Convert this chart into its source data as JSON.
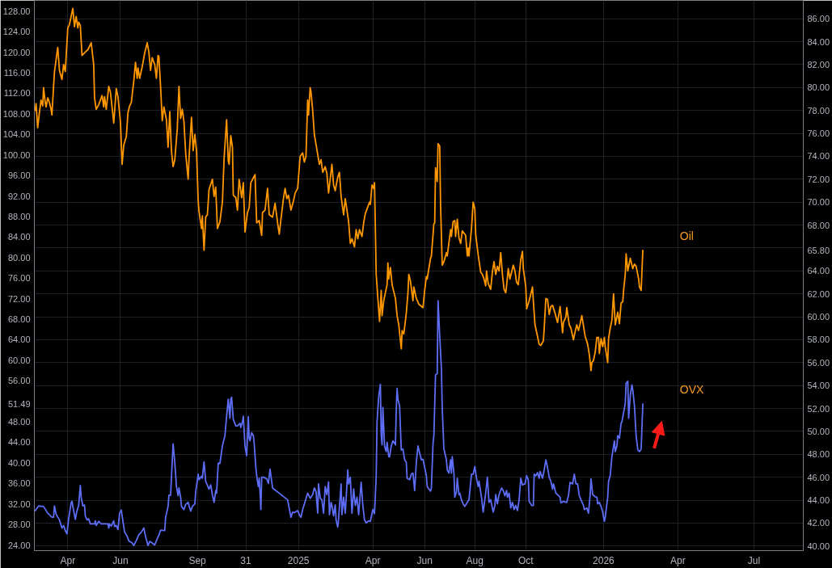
{
  "chart_data": {
    "type": "line",
    "grid": true,
    "xlim": [
      "2024-02-21",
      "2026-08-29"
    ],
    "xticks": [
      {
        "value": "2024-04-01",
        "label": "Apr"
      },
      {
        "value": "2024-06-03",
        "label": "Jun"
      },
      {
        "value": "2024-09-03",
        "label": "Sep"
      },
      {
        "value": "2024-10-31",
        "label": "31"
      },
      {
        "value": "2025-01-02",
        "label": "2025"
      },
      {
        "value": "2025-04-01",
        "label": "Apr"
      },
      {
        "value": "2025-06-02",
        "label": "Jun"
      },
      {
        "value": "2025-08-01",
        "label": "Aug"
      },
      {
        "value": "2025-10-01",
        "label": "Oct"
      },
      {
        "value": "2026-01-02",
        "label": "2026"
      },
      {
        "value": "2026-04-01",
        "label": "Apr"
      },
      {
        "value": "2026-07-01",
        "label": "Jul"
      }
    ],
    "ylim": [
      22.9,
      130.1
    ],
    "yticks": [
      {
        "value": 128,
        "label": "128.00"
      },
      {
        "value": 124,
        "label": "124.00"
      },
      {
        "value": 120,
        "label": "120.00"
      },
      {
        "value": 116,
        "label": "116.00"
      },
      {
        "value": 112,
        "label": "112.00"
      },
      {
        "value": 108,
        "label": "108.00"
      },
      {
        "value": 104,
        "label": "104.00"
      },
      {
        "value": 100,
        "label": "100.00"
      },
      {
        "value": 96,
        "label": "96.00"
      },
      {
        "value": 92,
        "label": "92.00"
      },
      {
        "value": 88,
        "label": "88.00"
      },
      {
        "value": 84,
        "label": "84.00"
      },
      {
        "value": 80,
        "label": "80.00"
      },
      {
        "value": 76,
        "label": "76.00"
      },
      {
        "value": 72,
        "label": "72.00"
      },
      {
        "value": 68,
        "label": "68.00"
      },
      {
        "value": 64,
        "label": "64.00"
      },
      {
        "value": 60,
        "label": "60.00"
      },
      {
        "value": 56,
        "label": "56.00"
      },
      {
        "value": 51.49,
        "label": "51.49"
      },
      {
        "value": 48,
        "label": "48.00"
      },
      {
        "value": 44,
        "label": "44.00"
      },
      {
        "value": 40,
        "label": "40.00"
      },
      {
        "value": 36,
        "label": "36.00"
      },
      {
        "value": 32,
        "label": "32.00"
      },
      {
        "value": 28,
        "label": "28.00"
      },
      {
        "value": 24,
        "label": "24.00"
      }
    ],
    "y2lim": [
      39.6,
      87.6
    ],
    "y2ticks": [
      {
        "value": 86,
        "label": "86.00"
      },
      {
        "value": 84,
        "label": "84.00"
      },
      {
        "value": 82,
        "label": "82.00"
      },
      {
        "value": 80,
        "label": "80.00"
      },
      {
        "value": 78,
        "label": "78.00"
      },
      {
        "value": 76,
        "label": "76.00"
      },
      {
        "value": 74,
        "label": "74.00"
      },
      {
        "value": 72,
        "label": "72.00"
      },
      {
        "value": 70,
        "label": "70.00"
      },
      {
        "value": 68,
        "label": "68.00"
      },
      {
        "value": 66,
        "label": null
      },
      {
        "value": 65.8,
        "label": "65.80"
      },
      {
        "value": 64,
        "label": "64.00"
      },
      {
        "value": 62,
        "label": "62.00"
      },
      {
        "value": 60,
        "label": "60.00"
      },
      {
        "value": 58,
        "label": "58.00"
      },
      {
        "value": 56,
        "label": "56.00"
      },
      {
        "value": 54,
        "label": "54.00"
      },
      {
        "value": 52,
        "label": "52.00"
      },
      {
        "value": 50,
        "label": "50.00"
      },
      {
        "value": 48,
        "label": "48.00"
      },
      {
        "value": 46,
        "label": "46.00"
      },
      {
        "value": 44,
        "label": "44.00"
      },
      {
        "value": 42,
        "label": "42.00"
      },
      {
        "value": 40,
        "label": "40.00"
      }
    ],
    "series": [
      {
        "name": "Oil",
        "color": "#ff9800",
        "axis": "y2",
        "x": [
          "2024-02-22",
          "2024-02-23",
          "2024-02-25",
          "2024-02-27",
          "2024-02-29",
          "2024-03-02",
          "2024-03-03",
          "2024-03-05",
          "2024-03-06",
          "2024-03-08",
          "2024-03-10",
          "2024-03-12",
          "2024-03-13",
          "2024-03-15",
          "2024-03-16",
          "2024-03-19",
          "2024-03-20",
          "2024-03-22",
          "2024-03-25",
          "2024-03-27",
          "2024-03-29",
          "2024-04-01",
          "2024-04-03",
          "2024-04-07",
          "2024-04-09",
          "2024-04-11",
          "2024-04-13",
          "2024-04-14",
          "2024-04-16",
          "2024-04-18",
          "2024-04-22",
          "2024-04-25",
          "2024-04-29",
          "2024-05-02",
          "2024-05-03",
          "2024-05-05",
          "2024-05-08",
          "2024-05-12",
          "2024-05-14",
          "2024-05-15",
          "2024-05-17",
          "2024-05-20",
          "2024-05-22",
          "2024-05-25",
          "2024-05-26",
          "2024-05-29",
          "2024-05-31",
          "2024-06-03",
          "2024-06-05",
          "2024-06-07",
          "2024-06-10",
          "2024-06-12",
          "2024-06-14",
          "2024-06-16",
          "2024-06-19",
          "2024-06-21",
          "2024-06-23",
          "2024-06-24",
          "2024-06-26",
          "2024-06-29",
          "2024-07-02",
          "2024-07-05",
          "2024-07-07",
          "2024-07-09",
          "2024-07-11",
          "2024-07-14",
          "2024-07-16",
          "2024-07-18",
          "2024-07-19",
          "2024-07-21",
          "2024-07-23",
          "2024-07-25",
          "2024-07-28",
          "2024-07-30",
          "2024-08-01",
          "2024-08-03",
          "2024-08-05",
          "2024-08-07",
          "2024-08-10",
          "2024-08-12",
          "2024-08-14",
          "2024-08-16",
          "2024-08-18",
          "2024-08-20",
          "2024-08-23",
          "2024-08-24",
          "2024-08-27",
          "2024-08-29",
          "2024-08-31",
          "2024-09-02",
          "2024-09-04",
          "2024-09-05",
          "2024-09-08",
          "2024-09-09",
          "2024-09-11",
          "2024-09-13",
          "2024-09-15",
          "2024-09-17",
          "2024-09-21",
          "2024-09-23",
          "2024-09-25",
          "2024-09-27",
          "2024-09-30",
          "2024-10-03",
          "2024-10-05",
          "2024-10-08",
          "2024-10-10",
          "2024-10-11",
          "2024-10-13",
          "2024-10-15",
          "2024-10-16",
          "2024-10-19",
          "2024-10-21",
          "2024-10-23",
          "2024-10-26",
          "2024-10-28",
          "2024-10-30",
          "2024-11-02",
          "2024-11-04",
          "2024-11-06",
          "2024-11-11",
          "2024-11-13",
          "2024-11-16",
          "2024-11-19",
          "2024-11-20",
          "2024-11-23",
          "2024-11-26",
          "2024-11-28",
          "2024-12-02",
          "2024-12-05",
          "2024-12-08",
          "2024-12-10",
          "2024-12-12",
          "2024-12-15",
          "2024-12-17",
          "2024-12-19",
          "2024-12-21",
          "2024-12-24",
          "2024-12-27",
          "2024-12-29",
          "2025-01-01",
          "2025-01-04",
          "2025-01-07",
          "2025-01-09",
          "2025-01-11",
          "2025-01-13",
          "2025-01-14",
          "2025-01-16",
          "2025-01-17",
          "2025-01-19",
          "2025-01-21",
          "2025-01-24",
          "2025-01-27",
          "2025-01-29",
          "2025-01-31",
          "2025-02-03",
          "2025-02-05",
          "2025-02-07",
          "2025-02-11",
          "2025-02-13",
          "2025-02-15",
          "2025-02-18",
          "2025-02-20",
          "2025-02-22",
          "2025-02-25",
          "2025-02-27",
          "2025-03-03",
          "2025-03-05",
          "2025-03-07",
          "2025-03-10",
          "2025-03-12",
          "2025-03-14",
          "2025-03-16",
          "2025-03-19",
          "2025-03-21",
          "2025-03-23",
          "2025-03-28",
          "2025-03-29",
          "2025-03-31",
          "2025-04-02",
          "2025-04-03",
          "2025-04-05",
          "2025-04-07",
          "2025-04-09",
          "2025-04-11",
          "2025-04-12",
          "2025-04-14",
          "2025-04-18",
          "2025-04-19",
          "2025-04-20",
          "2025-04-22",
          "2025-04-24",
          "2025-04-28",
          "2025-04-30",
          "2025-05-02",
          "2025-05-05",
          "2025-05-06",
          "2025-05-08",
          "2025-05-11",
          "2025-05-13",
          "2025-05-14",
          "2025-05-16",
          "2025-05-19",
          "2025-05-20",
          "2025-05-23",
          "2025-05-26",
          "2025-05-31",
          "2025-06-02",
          "2025-06-04",
          "2025-06-05",
          "2025-06-09",
          "2025-06-10",
          "2025-06-13",
          "2025-06-14",
          "2025-06-15",
          "2025-06-17",
          "2025-06-18",
          "2025-06-20",
          "2025-06-21",
          "2025-06-23",
          "2025-06-25",
          "2025-06-28",
          "2025-06-29",
          "2025-07-03",
          "2025-07-04",
          "2025-07-06",
          "2025-07-08",
          "2025-07-09",
          "2025-07-11",
          "2025-07-13",
          "2025-07-15",
          "2025-07-17",
          "2025-07-21",
          "2025-07-23",
          "2025-07-24",
          "2025-07-25",
          "2025-07-28",
          "2025-07-30",
          "2025-08-01",
          "2025-08-02",
          "2025-08-05",
          "2025-08-08",
          "2025-08-10",
          "2025-08-12",
          "2025-08-14",
          "2025-08-15",
          "2025-08-17",
          "2025-08-20",
          "2025-08-22",
          "2025-08-24",
          "2025-08-26",
          "2025-08-28",
          "2025-08-30",
          "2025-09-01",
          "2025-09-03",
          "2025-09-05",
          "2025-09-07",
          "2025-09-08",
          "2025-09-10",
          "2025-09-12",
          "2025-09-16",
          "2025-09-18",
          "2025-09-20",
          "2025-09-22",
          "2025-09-25",
          "2025-09-27",
          "2025-09-28",
          "2025-10-01",
          "2025-10-02",
          "2025-10-05",
          "2025-10-09",
          "2025-10-10",
          "2025-10-12",
          "2025-10-15",
          "2025-10-17",
          "2025-10-19",
          "2025-10-22",
          "2025-10-23",
          "2025-10-25",
          "2025-10-27",
          "2025-10-29",
          "2025-10-31",
          "2025-11-02",
          "2025-11-05",
          "2025-11-08",
          "2025-11-11",
          "2025-11-14",
          "2025-11-15",
          "2025-11-18",
          "2025-11-19",
          "2025-11-22",
          "2025-11-24",
          "2025-11-27",
          "2025-11-29",
          "2025-12-01",
          "2025-12-03",
          "2025-12-05",
          "2025-12-07",
          "2025-12-09",
          "2025-12-11",
          "2025-12-14",
          "2025-12-16",
          "2025-12-18",
          "2025-12-19",
          "2025-12-21",
          "2025-12-23",
          "2025-12-25",
          "2025-12-27",
          "2025-12-28",
          "2025-12-30",
          "2026-01-01",
          "2026-01-03",
          "2026-01-04",
          "2026-01-07",
          "2026-01-08",
          "2026-01-10",
          "2026-01-12",
          "2026-01-14",
          "2026-01-16",
          "2026-01-19",
          "2026-01-21",
          "2026-01-23",
          "2026-01-25",
          "2026-01-26",
          "2026-01-28",
          "2026-01-29",
          "2026-01-31",
          "2026-02-03",
          "2026-02-06",
          "2026-02-08",
          "2026-02-10",
          "2026-02-13",
          "2026-02-14",
          "2026-02-16",
          "2026-02-18"
        ],
        "values": [
          78.0,
          78.6,
          76.5,
          77.8,
          78.9,
          78.4,
          80.0,
          78.7,
          78.3,
          79.1,
          78.7,
          78.1,
          77.6,
          80.1,
          81.3,
          83.0,
          83.5,
          81.5,
          80.7,
          82.0,
          81.4,
          85.2,
          85.5,
          86.9,
          85.3,
          86.2,
          85.2,
          85.7,
          85.4,
          82.8,
          83.1,
          83.3,
          83.9,
          82.0,
          79.1,
          78.1,
          78.5,
          79.3,
          78.3,
          79.2,
          78.1,
          80.1,
          79.6,
          77.6,
          76.9,
          79.9,
          79.2,
          77.0,
          73.3,
          75.0,
          75.7,
          77.8,
          78.4,
          78.7,
          80.6,
          82.2,
          80.8,
          81.7,
          80.8,
          81.8,
          83.0,
          83.9,
          83.1,
          81.5,
          82.6,
          82.0,
          80.8,
          82.8,
          82.7,
          80.1,
          77.1,
          78.3,
          77.2,
          74.8,
          77.9,
          74.5,
          73.1,
          73.7,
          76.4,
          80.1,
          77.3,
          78.1,
          77.0,
          74.3,
          72.0,
          73.8,
          77.4,
          74.5,
          75.9,
          74.5,
          70.1,
          69.2,
          67.7,
          68.8,
          65.8,
          68.7,
          68.9,
          71.1,
          72.0,
          70.5,
          71.3,
          67.7,
          68.3,
          70.0,
          73.8,
          77.2,
          73.6,
          73.3,
          75.8,
          74.8,
          70.6,
          70.4,
          69.3,
          72.0,
          70.4,
          71.7,
          67.4,
          69.1,
          69.5,
          71.7,
          72.4,
          68.2,
          68.4,
          67.1,
          69.1,
          69.3,
          71.2,
          68.9,
          68.7,
          69.9,
          68.2,
          67.2,
          68.5,
          70.3,
          71.2,
          70.3,
          70.6,
          69.3,
          70.1,
          70.8,
          71.2,
          74.0,
          74.3,
          73.5,
          74.0,
          78.9,
          77.6,
          80.0,
          79.6,
          78.0,
          75.9,
          74.6,
          73.3,
          73.7,
          72.6,
          73.1,
          72.5,
          70.8,
          73.3,
          71.5,
          71.0,
          72.2,
          72.6,
          70.5,
          68.9,
          70.3,
          68.3,
          66.4,
          66.8,
          66.1,
          67.6,
          66.8,
          67.6,
          67.0,
          68.2,
          69.0,
          70.0,
          69.8,
          71.5,
          71.2,
          71.7,
          63.7,
          61.6,
          59.6,
          62.3,
          60.1,
          61.4,
          62.8,
          64.7,
          63.3,
          64.3,
          62.8,
          61.6,
          60.1,
          59.3,
          57.2,
          58.8,
          58.5,
          60.3,
          62.1,
          63.7,
          63.1,
          61.4,
          62.6,
          61.6,
          61.1,
          60.8,
          62.3,
          63.5,
          63.3,
          65.1,
          65.3,
          68.1,
          68.2,
          73.0,
          71.8,
          75.1,
          74.9,
          69.8,
          64.5,
          64.8,
          65.6,
          65.3,
          67.6,
          67.0,
          68.3,
          68.4,
          67.0,
          68.5,
          66.9,
          66.4,
          67.5,
          67.1,
          65.3,
          66.0,
          65.3,
          67.7,
          70.0,
          69.4,
          67.2,
          65.4,
          63.9,
          63.7,
          63.3,
          62.7,
          64.0,
          62.9,
          62.4,
          63.9,
          64.8,
          63.7,
          64.4,
          64.0,
          65.6,
          63.7,
          62.4,
          62.1,
          62.7,
          64.2,
          63.3,
          64.5,
          64.0,
          63.0,
          62.8,
          65.0,
          65.7,
          64.2,
          62.6,
          60.7,
          61.4,
          62.6,
          61.4,
          59.3,
          58.3,
          57.6,
          57.5,
          57.9,
          59.0,
          61.6,
          61.5,
          60.2,
          60.9,
          61.0,
          60.3,
          59.5,
          60.9,
          58.6,
          59.5,
          60.0,
          60.8,
          59.3,
          59.0,
          58.0,
          58.7,
          59.3,
          58.8,
          59.4,
          60.1,
          59.2,
          58.3,
          57.6,
          56.7,
          55.3,
          56.0,
          56.2,
          56.9,
          58.2,
          58.2,
          56.8,
          58.1,
          57.4,
          58.2,
          57.4,
          56.0,
          58.1,
          59.0,
          59.7,
          62.0,
          59.3,
          60.4,
          59.4,
          61.2,
          61.3,
          62.3,
          63.7,
          65.5,
          64.0,
          65.1,
          64.2,
          64.6,
          64.4,
          63.3,
          62.6,
          62.3,
          65.8
        ]
      },
      {
        "name": "OVX",
        "color": "#5d6df5",
        "axis": "y",
        "x": [
          "2024-02-22",
          "2024-02-26",
          "2024-03-03",
          "2024-03-08",
          "2024-03-13",
          "2024-03-15",
          "2024-03-16",
          "2024-03-18",
          "2024-03-22",
          "2024-03-25",
          "2024-03-27",
          "2024-03-29",
          "2024-03-31",
          "2024-04-02",
          "2024-04-05",
          "2024-04-06",
          "2024-04-08",
          "2024-04-10",
          "2024-04-12",
          "2024-04-14",
          "2024-04-16",
          "2024-04-17",
          "2024-04-19",
          "2024-04-21",
          "2024-04-22",
          "2024-04-24",
          "2024-04-26",
          "2024-04-28",
          "2024-05-03",
          "2024-05-04",
          "2024-05-05",
          "2024-05-08",
          "2024-05-11",
          "2024-05-19",
          "2024-05-20",
          "2024-05-21",
          "2024-05-23",
          "2024-05-26",
          "2024-05-27",
          "2024-05-29",
          "2024-05-31",
          "2024-06-02",
          "2024-06-04",
          "2024-06-06",
          "2024-06-08",
          "2024-06-11",
          "2024-06-13",
          "2024-06-17",
          "2024-06-19",
          "2024-06-22",
          "2024-06-25",
          "2024-06-28",
          "2024-07-01",
          "2024-07-03",
          "2024-07-06",
          "2024-07-08",
          "2024-07-11",
          "2024-07-14",
          "2024-07-17",
          "2024-07-19",
          "2024-07-21",
          "2024-07-26",
          "2024-07-27",
          "2024-07-30",
          "2024-07-31",
          "2024-08-02",
          "2024-08-05",
          "2024-08-07",
          "2024-08-09",
          "2024-08-11",
          "2024-08-12",
          "2024-08-14",
          "2024-08-15",
          "2024-08-18",
          "2024-08-20",
          "2024-08-23",
          "2024-08-24",
          "2024-08-26",
          "2024-08-28",
          "2024-08-31",
          "2024-09-01",
          "2024-09-04",
          "2024-09-05",
          "2024-09-08",
          "2024-09-09",
          "2024-09-11",
          "2024-09-13",
          "2024-09-17",
          "2024-09-19",
          "2024-09-21",
          "2024-09-23",
          "2024-09-25",
          "2024-09-26",
          "2024-09-28",
          "2024-09-30",
          "2024-10-03",
          "2024-10-06",
          "2024-10-08",
          "2024-10-10",
          "2024-10-12",
          "2024-10-13",
          "2024-10-14",
          "2024-10-16",
          "2024-10-19",
          "2024-10-21",
          "2024-10-24",
          "2024-10-25",
          "2024-10-27",
          "2024-10-28",
          "2024-10-30",
          "2024-11-01",
          "2024-11-03",
          "2024-11-04",
          "2024-11-05",
          "2024-11-07",
          "2024-11-09",
          "2024-11-10",
          "2024-11-12",
          "2024-11-13",
          "2024-11-15",
          "2024-11-16",
          "2024-11-17",
          "2024-11-18",
          "2024-11-19",
          "2024-11-21",
          "2024-11-25",
          "2024-11-27",
          "2024-11-29",
          "2024-12-02",
          "2024-12-20",
          "2024-12-24",
          "2024-12-26",
          "2024-12-28",
          "2025-01-01",
          "2025-01-03",
          "2025-01-05",
          "2025-01-07",
          "2025-01-10",
          "2025-01-13",
          "2025-01-16",
          "2025-01-19",
          "2025-01-21",
          "2025-01-23",
          "2025-01-25",
          "2025-01-26",
          "2025-01-28",
          "2025-01-30",
          "2025-02-01",
          "2025-02-03",
          "2025-02-05",
          "2025-02-07",
          "2025-02-08",
          "2025-02-10",
          "2025-02-11",
          "2025-02-13",
          "2025-02-15",
          "2025-02-16",
          "2025-02-18",
          "2025-02-19",
          "2025-02-22",
          "2025-02-23",
          "2025-02-25",
          "2025-02-27",
          "2025-03-02",
          "2025-03-03",
          "2025-03-05",
          "2025-03-07",
          "2025-03-09",
          "2025-03-11",
          "2025-03-13",
          "2025-03-15",
          "2025-03-18",
          "2025-03-20",
          "2025-03-22",
          "2025-03-24",
          "2025-03-27",
          "2025-03-29",
          "2025-04-01",
          "2025-04-03",
          "2025-04-05",
          "2025-04-06",
          "2025-04-08",
          "2025-04-10",
          "2025-04-11",
          "2025-04-12",
          "2025-04-13",
          "2025-04-15",
          "2025-04-17",
          "2025-04-18",
          "2025-04-20",
          "2025-04-21",
          "2025-04-23",
          "2025-04-25",
          "2025-04-28",
          "2025-04-29",
          "2025-04-30",
          "2025-05-01",
          "2025-05-03",
          "2025-05-05",
          "2025-05-07",
          "2025-05-09",
          "2025-05-11",
          "2025-05-12",
          "2025-05-15",
          "2025-05-17",
          "2025-05-19",
          "2025-05-21",
          "2025-05-23",
          "2025-05-25",
          "2025-05-27",
          "2025-05-29",
          "2025-05-31",
          "2025-06-02",
          "2025-06-04",
          "2025-06-05",
          "2025-06-07",
          "2025-06-09",
          "2025-06-10",
          "2025-06-12",
          "2025-06-13",
          "2025-06-15",
          "2025-06-17",
          "2025-06-18",
          "2025-06-20",
          "2025-06-22",
          "2025-06-23",
          "2025-06-25",
          "2025-06-28",
          "2025-06-29",
          "2025-07-01",
          "2025-07-03",
          "2025-07-04",
          "2025-07-05",
          "2025-07-07",
          "2025-07-08",
          "2025-07-10",
          "2025-07-11",
          "2025-07-13",
          "2025-07-14",
          "2025-07-16",
          "2025-07-18",
          "2025-07-20",
          "2025-07-23",
          "2025-07-25",
          "2025-07-28",
          "2025-07-30",
          "2025-08-01",
          "2025-08-03",
          "2025-08-05",
          "2025-08-06",
          "2025-08-09",
          "2025-08-11",
          "2025-08-14",
          "2025-08-16",
          "2025-08-18",
          "2025-08-20",
          "2025-08-23",
          "2025-08-25",
          "2025-08-26",
          "2025-08-28",
          "2025-08-30",
          "2025-09-02",
          "2025-09-04",
          "2025-09-06",
          "2025-09-08",
          "2025-09-09",
          "2025-09-11",
          "2025-09-13",
          "2025-09-15",
          "2025-09-17",
          "2025-09-19",
          "2025-09-21",
          "2025-09-23",
          "2025-09-25",
          "2025-09-27",
          "2025-09-30",
          "2025-10-02",
          "2025-10-04",
          "2025-10-05",
          "2025-10-08",
          "2025-10-10",
          "2025-10-11",
          "2025-10-13",
          "2025-10-15",
          "2025-10-17",
          "2025-10-18",
          "2025-10-21",
          "2025-10-23",
          "2025-10-25",
          "2025-10-27",
          "2025-10-29",
          "2025-10-31",
          "2025-11-02",
          "2025-11-03",
          "2025-11-06",
          "2025-11-08",
          "2025-11-11",
          "2025-11-12",
          "2025-11-15",
          "2025-11-19",
          "2025-11-21",
          "2025-11-23",
          "2025-11-26",
          "2025-11-28",
          "2025-11-30",
          "2025-12-02",
          "2025-12-04",
          "2025-12-06",
          "2025-12-09",
          "2025-12-10",
          "2025-12-13",
          "2025-12-15",
          "2025-12-17",
          "2025-12-18",
          "2025-12-20",
          "2025-12-23",
          "2025-12-25",
          "2025-12-26",
          "2025-12-28",
          "2025-12-30",
          "2026-01-01",
          "2026-01-03",
          "2026-01-04",
          "2026-01-07",
          "2026-01-08",
          "2026-01-10",
          "2026-01-12",
          "2026-01-15",
          "2026-01-16",
          "2026-01-18",
          "2026-01-19",
          "2026-01-21",
          "2026-01-23",
          "2026-01-24",
          "2026-01-26",
          "2026-01-28",
          "2026-01-29",
          "2026-01-31",
          "2026-02-01",
          "2026-02-03",
          "2026-02-05",
          "2026-02-06",
          "2026-02-08",
          "2026-02-10",
          "2026-02-12",
          "2026-02-14",
          "2026-02-16",
          "2026-02-18"
        ],
        "values": [
          30.7,
          31.6,
          31.5,
          30.2,
          29.4,
          29.4,
          31.6,
          30.0,
          28.9,
          27.3,
          27.8,
          26.8,
          26.2,
          29.1,
          32.2,
          32.5,
          30.7,
          29.0,
          30.7,
          31.7,
          35.6,
          33.3,
          31.6,
          31.8,
          29.6,
          28.9,
          29.1,
          28.1,
          28.1,
          28.7,
          27.8,
          28.6,
          28.1,
          28.1,
          27.3,
          28.1,
          27.7,
          28.7,
          27.6,
          27.8,
          27.0,
          30.2,
          30.8,
          28.6,
          26.5,
          25.7,
          24.8,
          24.4,
          23.9,
          24.9,
          26.0,
          26.5,
          27.3,
          25.7,
          23.9,
          24.7,
          24.4,
          24.0,
          25.2,
          25.9,
          26.9,
          26.8,
          29.4,
          31.5,
          33.7,
          33.7,
          43.7,
          40.1,
          35.4,
          33.6,
          35.1,
          33.3,
          31.5,
          30.9,
          31.9,
          32.3,
          31.7,
          30.6,
          31.5,
          32.0,
          34.3,
          37.8,
          36.7,
          37.4,
          37.0,
          40.2,
          36.4,
          34.9,
          35.7,
          33.8,
          32.3,
          34.6,
          34.1,
          39.9,
          39.9,
          43.3,
          45.3,
          49.0,
          52.4,
          48.7,
          52.4,
          52.8,
          48.5,
          47.2,
          47.2,
          47.7,
          46.9,
          48.0,
          49.1,
          43.3,
          41.4,
          49.0,
          44.8,
          44.3,
          45.9,
          45.3,
          43.8,
          39.1,
          37.5,
          35.4,
          37.0,
          34.4,
          30.9,
          37.2,
          37.2,
          36.9,
          36.0,
          38.8,
          35.1,
          32.8,
          29.4,
          30.4,
          30.3,
          30.7,
          29.9,
          29.4,
          30.9,
          32.5,
          34.1,
          33.1,
          33.8,
          35.1,
          34.4,
          30.2,
          35.9,
          33.1,
          32.8,
          30.2,
          35.4,
          33.8,
          36.3,
          29.9,
          32.3,
          31.7,
          29.7,
          31.8,
          28.9,
          27.5,
          29.1,
          35.9,
          29.9,
          33.3,
          30.2,
          38.6,
          35.9,
          37.2,
          30.2,
          34.9,
          31.7,
          33.3,
          29.9,
          36.2,
          31.7,
          28.9,
          28.3,
          28.7,
          28.6,
          30.9,
          30.1,
          37.5,
          48.0,
          52.9,
          55.3,
          45.3,
          43.5,
          50.8,
          43.2,
          42.2,
          44.0,
          41.2,
          41.2,
          43.3,
          44.3,
          43.5,
          50.3,
          54.5,
          52.4,
          51.1,
          42.5,
          42.7,
          40.6,
          40.1,
          37.0,
          36.7,
          37.8,
          38.0,
          34.6,
          40.1,
          43.3,
          41.9,
          40.6,
          40.7,
          39.1,
          37.5,
          35.4,
          34.9,
          34.5,
          35.1,
          43.8,
          45.3,
          57.1,
          57.4,
          71.6,
          64.7,
          58.4,
          50.6,
          42.7,
          40.6,
          38.6,
          38.0,
          40.6,
          38.0,
          41.2,
          38.0,
          33.3,
          34.4,
          37.0,
          33.8,
          34.1,
          32.8,
          32.0,
          31.5,
          32.3,
          32.8,
          37.8,
          37.8,
          39.3,
          37.0,
          35.4,
          36.4,
          33.3,
          30.4,
          34.1,
          37.2,
          32.3,
          32.8,
          30.4,
          31.7,
          33.8,
          32.0,
          33.8,
          35.1,
          34.6,
          33.6,
          34.6,
          33.3,
          34.1,
          31.2,
          32.3,
          30.9,
          31.7,
          30.7,
          32.8,
          37.0,
          35.7,
          35.9,
          37.5,
          36.7,
          32.5,
          31.7,
          31.7,
          37.8,
          37.5,
          38.1,
          37.0,
          38.3,
          37.0,
          38.6,
          40.6,
          39.1,
          37.2,
          36.4,
          34.9,
          35.9,
          34.1,
          33.8,
          33.3,
          32.2,
          32.5,
          32.3,
          33.6,
          36.2,
          35.9,
          37.8,
          35.9,
          35.9,
          33.6,
          32.8,
          31.7,
          30.9,
          31.2,
          30.2,
          33.8,
          36.9,
          33.8,
          33.4,
          33.3,
          32.0,
          32.3,
          31.5,
          30.4,
          28.6,
          29.4,
          33.3,
          36.4,
          37.5,
          41.2,
          44.3,
          42.2,
          43.3,
          45.3,
          44.8,
          47.7,
          48.0,
          49.8,
          51.6,
          55.5,
          55.9,
          48.7,
          53.2,
          55.2,
          54.2,
          51.1,
          45.3,
          42.5,
          42.2,
          42.7,
          51.49
        ]
      }
    ]
  }
}
